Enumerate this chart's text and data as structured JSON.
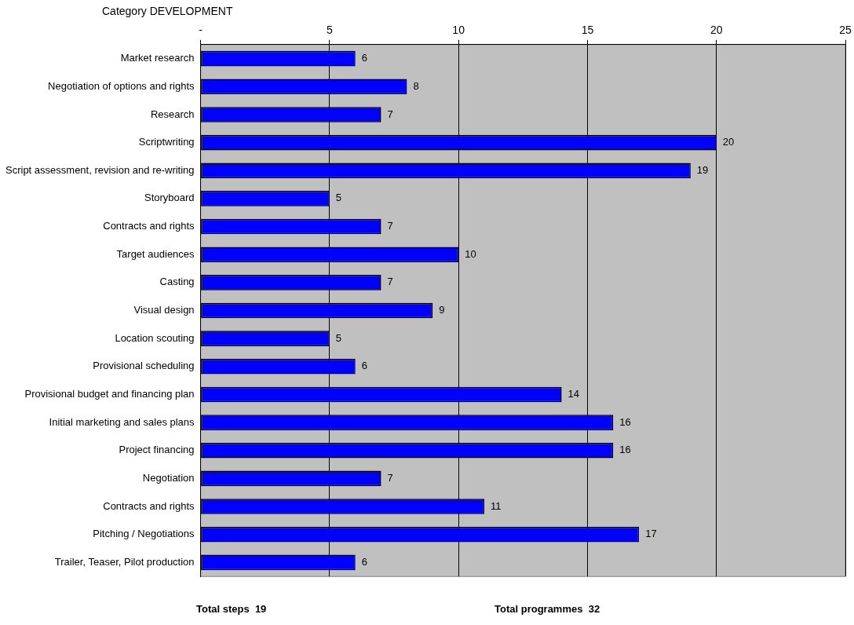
{
  "chart_data": {
    "type": "bar",
    "orientation": "horizontal",
    "title": "Category DEVELOPMENT",
    "categories": [
      "Market research",
      "Negotiation of options and rights",
      "Research",
      "Scriptwriting",
      "Script assessment, revision and re-writing",
      "Storyboard",
      "Contracts and rights",
      "Target audiences",
      "Casting",
      "Visual design",
      "Location scouting",
      "Provisional scheduling",
      "Provisional budget and financing plan",
      "Initial marketing and sales plans",
      "Project financing",
      "Negotiation",
      "Contracts and rights",
      "Pitching / Negotiations",
      "Trailer, Teaser, Pilot production"
    ],
    "values": [
      6,
      8,
      7,
      20,
      19,
      5,
      7,
      10,
      7,
      9,
      5,
      6,
      14,
      16,
      16,
      7,
      11,
      17,
      6
    ],
    "color": "#0000ff",
    "xlim": [
      0,
      25
    ],
    "xticks": [
      {
        "value": 0,
        "label": "-"
      },
      5,
      10,
      15,
      20,
      25
    ],
    "grid": "x",
    "data_labels": true,
    "annotations": [
      "Total steps  19",
      "Total programmes  32"
    ]
  }
}
